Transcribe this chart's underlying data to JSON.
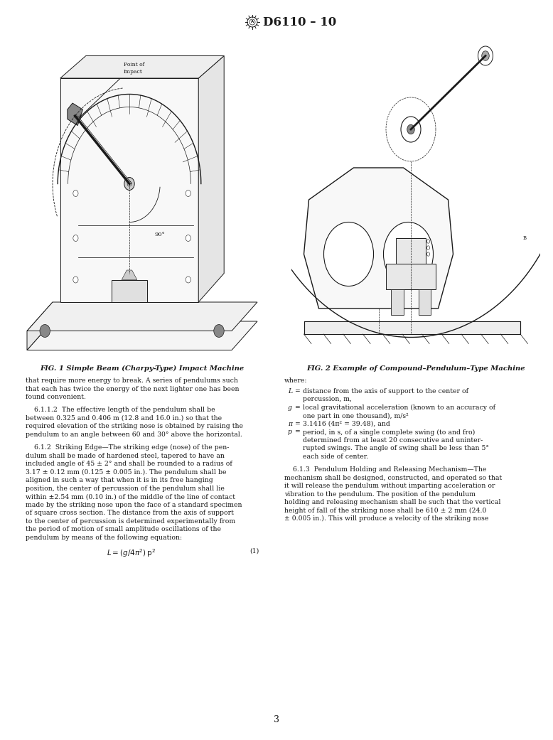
{
  "page_width": 7.78,
  "page_height": 10.41,
  "dpi": 100,
  "background_color": "#ffffff",
  "header_title": "D6110 – 10",
  "page_number": "3",
  "fig1_caption": "FIG. 1 Simple Beam (Charpy-Type) Impact Machine",
  "fig2_caption": "FIG. 2 Example of Compound–Pendulum–Type Machine",
  "text_color": "#1a1a1a",
  "line_color": "#1a1a1a",
  "body_left": [
    "that require more energy to break. A series of pendulums such",
    "that each has twice the energy of the next lighter one has been",
    "found convenient.",
    "",
    "    6.1.1.2  The effective length of the pendulum shall be",
    "between 0.325 and 0.406 m (12.8 and 16.0 in.) so that the",
    "required elevation of the striking nose is obtained by raising the",
    "pendulum to an angle between 60 and 30° above the horizontal.",
    "",
    "    6.1.2  Striking Edge—The striking edge (nose) of the pen-",
    "dulum shall be made of hardened steel, tapered to have an",
    "included angle of 45 ± 2° and shall be rounded to a radius of",
    "3.17 ± 0.12 mm (0.125 ± 0.005 in.). The pendulum shall be",
    "aligned in such a way that when it is in its free hanging",
    "position, the center of percussion of the pendulum shall lie",
    "within ±2.54 mm (0.10 in.) of the middle of the line of contact",
    "made by the striking nose upon the face of a standard specimen",
    "of square cross section. The distance from the axis of support",
    "to the center of percussion is determined experimentally from",
    "the period of motion of small amplitude oscillations of the",
    "pendulum by means of the following equation:",
    "",
    "EQUATION_LINE"
  ],
  "body_right": [
    "where:",
    "L_LINE",
    "INDENT_LINE_1",
    "G_LINE",
    "INDENT_LINE_2",
    "PI_LINE",
    "P_LINE",
    "INDENT_LINE_3",
    "INDENT_LINE_4",
    "INDENT_LINE_5",
    "",
    "    6.1.3  Pendulum Holding and Releasing Mechanism—The",
    "mechanism shall be designed, constructed, and operated so that",
    "it will release the pendulum without imparting acceleration or",
    "vibration to the pendulum. The position of the pendulum",
    "holding and releasing mechanism shall be such that the vertical",
    "height of fall of the striking nose shall be 610 ± 2 mm (24.0",
    "± 0.005 in.). This will produce a velocity of the striking nose"
  ]
}
